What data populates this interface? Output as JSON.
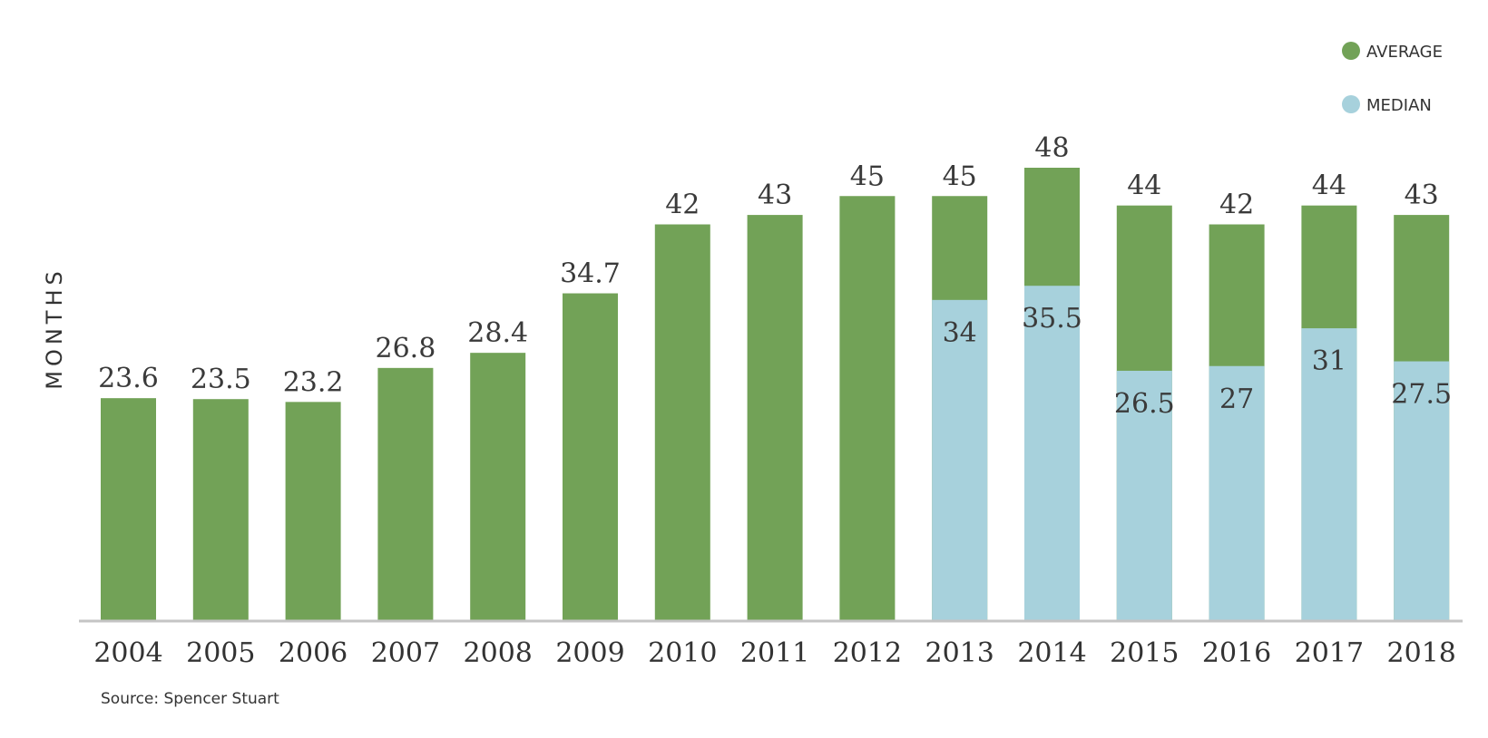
{
  "chart_data": {
    "type": "bar",
    "categories": [
      "2004",
      "2005",
      "2006",
      "2007",
      "2008",
      "2009",
      "2010",
      "2011",
      "2012",
      "2013",
      "2014",
      "2015",
      "2016",
      "2017",
      "2018"
    ],
    "series": [
      {
        "name": "AVERAGE",
        "color": "#72a257",
        "values": [
          23.6,
          23.5,
          23.2,
          26.8,
          28.4,
          34.7,
          42,
          43,
          45,
          45,
          48,
          44,
          42,
          44,
          43
        ],
        "labels": [
          "23.6",
          "23.5",
          "23.2",
          "26.8",
          "28.4",
          "34.7",
          "42",
          "43",
          "45",
          "45",
          "48",
          "44",
          "42",
          "44",
          "43"
        ]
      },
      {
        "name": "MEDIAN",
        "color": "#a7d1dc",
        "values": [
          null,
          null,
          null,
          null,
          null,
          null,
          null,
          null,
          null,
          34,
          35.5,
          26.5,
          27,
          31,
          27.5
        ],
        "labels": [
          null,
          null,
          null,
          null,
          null,
          null,
          null,
          null,
          null,
          "34",
          "35.5",
          "26.5",
          "27",
          "31",
          "27.5"
        ]
      }
    ],
    "ylabel": "MONTHS",
    "ylim": [
      0,
      48
    ],
    "grid": false,
    "legend_position": "top-right",
    "source": "Source: Spencer Stuart"
  }
}
